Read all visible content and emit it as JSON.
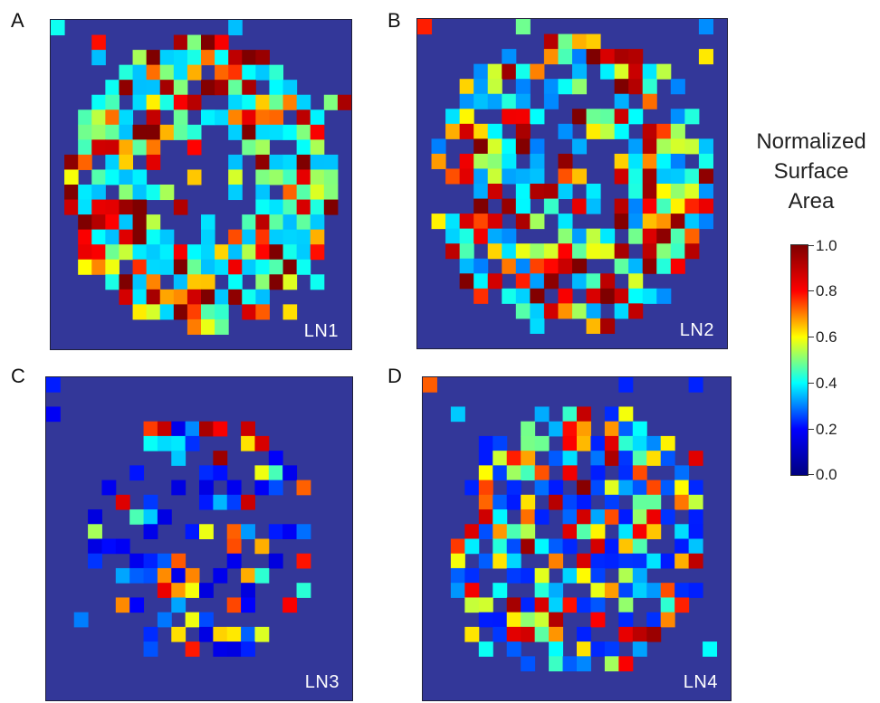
{
  "chart_data": {
    "type": "heatmap",
    "panels": [
      {
        "letter": "A",
        "label": "LN1"
      },
      {
        "letter": "B",
        "label": "LN2"
      },
      {
        "letter": "C",
        "label": "LN3"
      },
      {
        "letter": "D",
        "label": "LN4"
      }
    ],
    "colorbar": {
      "title_lines": [
        "Normalized",
        "Surface",
        "Area"
      ],
      "ticks": [
        "1.0",
        "0.8",
        "0.6",
        "0.4",
        "0.2",
        "0.0"
      ],
      "range": [
        0,
        1
      ],
      "colormap": "jet"
    }
  },
  "colors": {
    "background": "#333799",
    "colormap_stops": [
      "#00007f",
      "#0000ff",
      "#00ffff",
      "#ffff00",
      "#ff0000",
      "#7f0000"
    ]
  }
}
